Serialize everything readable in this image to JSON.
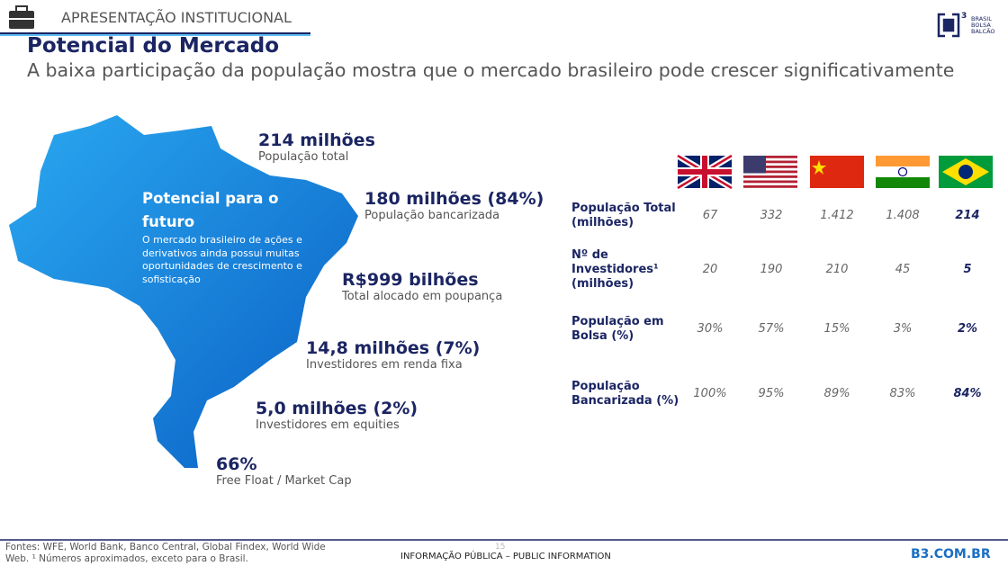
{
  "header": {
    "section": "APRESENTAÇÃO INSTITUCIONAL",
    "title": "Potencial do Mercado",
    "subtitle": "A baixa participação da população mostra que o mercado brasileiro pode crescer significativamente"
  },
  "logo": {
    "lines": [
      "BRASIL",
      "BOLSA",
      "BALCÃO"
    ]
  },
  "map_box": {
    "heading": "Potencial para o futuro",
    "body": "O mercado brasileiro de ações e derivativos ainda possui muitas oportunidades de crescimento e sofisticação"
  },
  "stats": [
    {
      "value": "214 milhões",
      "label": "População total"
    },
    {
      "value": "180 milhões (84%)",
      "label": "População bancarizada"
    },
    {
      "value": "R$999 bilhões",
      "label": "Total alocado em poupança"
    },
    {
      "value": "14,8 milhões (7%)",
      "label": "Investidores em renda fixa"
    },
    {
      "value": "5,0 milhões (2%)",
      "label": "Investidores em equities"
    },
    {
      "value": "66%",
      "label": "Free Float / Market Cap"
    }
  ],
  "table": {
    "rows": [
      {
        "label": "População Total (milhões)",
        "values": [
          "67",
          "332",
          "1.412",
          "1.408",
          "214"
        ]
      },
      {
        "label": "Nº de Investidores¹ (milhões)",
        "values": [
          "20",
          "190",
          "210",
          "45",
          "5"
        ]
      },
      {
        "label": "População em Bolsa (%)",
        "values": [
          "30%",
          "57%",
          "15%",
          "3%",
          "2%"
        ]
      },
      {
        "label": "População Bancarizada (%)",
        "values": [
          "100%",
          "95%",
          "89%",
          "83%",
          "84%"
        ]
      }
    ]
  },
  "footer": {
    "sources": "Fontes: WFE, World Bank, Banco Central, Global Findex, World Wide Web. ¹ Números aproximados, exceto para o Brasil.",
    "page": "15",
    "classification": "INFORMAÇÃO PÚBLICA – PUBLIC INFORMATION",
    "site": "B3.COM.BR"
  }
}
